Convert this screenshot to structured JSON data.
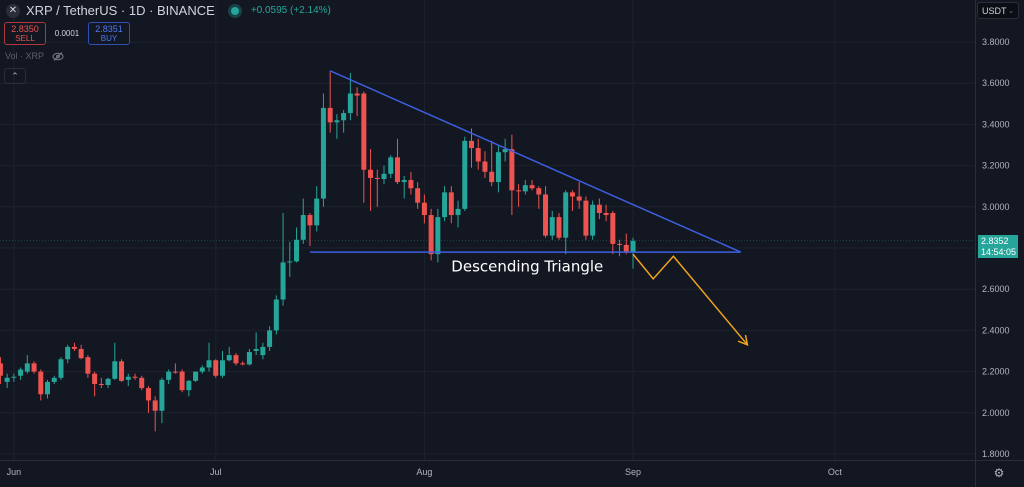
{
  "header": {
    "symbol_title": "XRP / TetherUS · 1D · BINANCE",
    "logo_icon": "xrp-logo-icon",
    "market_status": "open",
    "change": "+0.0595 (+2.14%)",
    "change_color": "#26a69a"
  },
  "trade": {
    "sell_price": "2.8350",
    "sell_label": "SELL",
    "spread": "0.0001",
    "buy_price": "2.8351",
    "buy_label": "BUY"
  },
  "indicator": {
    "label": "Vol · XRP",
    "visibility_icon": "eye-off-icon",
    "collapse_icon": "chevron-up-icon"
  },
  "currency_select": {
    "value": "USDT"
  },
  "last_price_tag": {
    "price": "2.8352",
    "countdown": "14:54:05",
    "color": "#26a69a"
  },
  "settings_icon": "gear-icon",
  "chart_data": {
    "type": "candlestick",
    "title": "",
    "interval": "1D",
    "colors": {
      "up": "#26a69a",
      "down": "#ef5350",
      "background": "#131722",
      "grid": "#1e222d",
      "trendline": "#3d5fe0",
      "projection": "#f0a31c"
    },
    "ylim": [
      1.75,
      3.92
    ],
    "y_ticks": [
      "3.8000",
      "3.6000",
      "3.4000",
      "3.2000",
      "3.0000",
      "2.8000",
      "2.6000",
      "2.4000",
      "2.2000",
      "2.0000",
      "1.8000"
    ],
    "y_ticks_hidden_by_tag": [
      "2.8000"
    ],
    "x_ticks": [
      {
        "label": "Jun",
        "date": "06-01"
      },
      {
        "label": "Jul",
        "date": "07-01"
      },
      {
        "label": "Aug",
        "date": "08-01"
      },
      {
        "label": "Sep",
        "date": "09-01"
      },
      {
        "label": "Oct",
        "date": "10-01"
      }
    ],
    "grid": true,
    "candles_columns": [
      "date",
      "open",
      "high",
      "low",
      "close"
    ],
    "candles": [
      [
        "05-30",
        2.24,
        2.27,
        2.14,
        2.18
      ],
      [
        "05-31",
        2.15,
        2.19,
        2.12,
        2.17
      ],
      [
        "06-01",
        2.17,
        2.19,
        2.15,
        2.175
      ],
      [
        "06-02",
        2.18,
        2.22,
        2.16,
        2.21
      ],
      [
        "06-03",
        2.2,
        2.28,
        2.19,
        2.24
      ],
      [
        "06-04",
        2.24,
        2.25,
        2.19,
        2.2
      ],
      [
        "06-05",
        2.2,
        2.21,
        2.06,
        2.09
      ],
      [
        "06-06",
        2.09,
        2.16,
        2.07,
        2.15
      ],
      [
        "06-07",
        2.15,
        2.18,
        2.14,
        2.17
      ],
      [
        "06-08",
        2.17,
        2.27,
        2.16,
        2.26
      ],
      [
        "06-09",
        2.26,
        2.33,
        2.24,
        2.32
      ],
      [
        "06-10",
        2.32,
        2.34,
        2.3,
        2.31
      ],
      [
        "06-11",
        2.31,
        2.33,
        2.26,
        2.265
      ],
      [
        "06-12",
        2.27,
        2.28,
        2.17,
        2.19
      ],
      [
        "06-13",
        2.19,
        2.2,
        2.08,
        2.14
      ],
      [
        "06-14",
        2.14,
        2.17,
        2.12,
        2.135
      ],
      [
        "06-15",
        2.135,
        2.17,
        2.12,
        2.165
      ],
      [
        "06-16",
        2.165,
        2.34,
        2.16,
        2.25
      ],
      [
        "06-17",
        2.25,
        2.26,
        2.15,
        2.155
      ],
      [
        "06-18",
        2.16,
        2.19,
        2.13,
        2.175
      ],
      [
        "06-19",
        2.175,
        2.19,
        2.16,
        2.17
      ],
      [
        "06-20",
        2.17,
        2.18,
        2.11,
        2.12
      ],
      [
        "06-21",
        2.12,
        2.13,
        2.0,
        2.06
      ],
      [
        "06-22",
        2.06,
        2.08,
        1.91,
        2.01
      ],
      [
        "06-23",
        2.01,
        2.17,
        1.95,
        2.16
      ],
      [
        "06-24",
        2.16,
        2.21,
        2.14,
        2.2
      ],
      [
        "06-25",
        2.2,
        2.24,
        2.19,
        2.195
      ],
      [
        "06-26",
        2.2,
        2.21,
        2.1,
        2.11
      ],
      [
        "06-27",
        2.11,
        2.16,
        2.08,
        2.155
      ],
      [
        "06-28",
        2.155,
        2.2,
        2.15,
        2.2
      ],
      [
        "06-29",
        2.2,
        2.23,
        2.19,
        2.22
      ],
      [
        "06-30",
        2.22,
        2.34,
        2.2,
        2.255
      ],
      [
        "07-01",
        2.255,
        2.26,
        2.17,
        2.18
      ],
      [
        "07-02",
        2.18,
        2.3,
        2.17,
        2.255
      ],
      [
        "07-03",
        2.255,
        2.32,
        2.25,
        2.28
      ],
      [
        "07-04",
        2.28,
        2.29,
        2.23,
        2.24
      ],
      [
        "07-05",
        2.24,
        2.25,
        2.23,
        2.235
      ],
      [
        "07-06",
        2.235,
        2.31,
        2.23,
        2.295
      ],
      [
        "07-07",
        2.3,
        2.39,
        2.28,
        2.31
      ],
      [
        "07-08",
        2.28,
        2.34,
        2.26,
        2.32
      ],
      [
        "07-09",
        2.32,
        2.42,
        2.3,
        2.4
      ],
      [
        "07-10",
        2.4,
        2.57,
        2.38,
        2.55
      ],
      [
        "07-11",
        2.55,
        2.97,
        2.52,
        2.73
      ],
      [
        "07-12",
        2.73,
        2.83,
        2.66,
        2.735
      ],
      [
        "07-13",
        2.735,
        2.9,
        2.73,
        2.84
      ],
      [
        "07-14",
        2.84,
        3.04,
        2.82,
        2.96
      ],
      [
        "07-15",
        2.96,
        2.97,
        2.81,
        2.91
      ],
      [
        "07-16",
        2.91,
        3.1,
        2.88,
        3.04
      ],
      [
        "07-17",
        3.04,
        3.55,
        3.0,
        3.48
      ],
      [
        "07-18",
        3.48,
        3.66,
        3.36,
        3.41
      ],
      [
        "07-19",
        3.41,
        3.45,
        3.33,
        3.42
      ],
      [
        "07-20",
        3.42,
        3.47,
        3.36,
        3.455
      ],
      [
        "07-21",
        3.455,
        3.65,
        3.42,
        3.55
      ],
      [
        "07-22",
        3.55,
        3.58,
        3.44,
        3.54
      ],
      [
        "07-23",
        3.55,
        3.56,
        3.02,
        3.18
      ],
      [
        "07-24",
        3.18,
        3.28,
        2.98,
        3.14
      ],
      [
        "07-25",
        3.14,
        3.18,
        3.0,
        3.135
      ],
      [
        "07-26",
        3.135,
        3.2,
        3.11,
        3.16
      ],
      [
        "07-27",
        3.16,
        3.25,
        3.14,
        3.24
      ],
      [
        "07-28",
        3.24,
        3.33,
        3.11,
        3.12
      ],
      [
        "07-29",
        3.12,
        3.15,
        3.04,
        3.13
      ],
      [
        "07-30",
        3.13,
        3.17,
        3.06,
        3.09
      ],
      [
        "07-31",
        3.09,
        3.12,
        2.99,
        3.02
      ],
      [
        "08-01",
        3.02,
        3.06,
        2.92,
        2.96
      ],
      [
        "08-02",
        2.96,
        2.99,
        2.74,
        2.77
      ],
      [
        "08-03",
        2.77,
        2.99,
        2.73,
        2.95
      ],
      [
        "08-04",
        2.95,
        3.1,
        2.93,
        3.07
      ],
      [
        "08-05",
        3.07,
        3.1,
        2.92,
        2.96
      ],
      [
        "08-06",
        2.96,
        3.03,
        2.9,
        2.99
      ],
      [
        "08-07",
        2.99,
        3.34,
        2.98,
        3.32
      ],
      [
        "08-08",
        3.32,
        3.38,
        3.19,
        3.285
      ],
      [
        "08-09",
        3.285,
        3.33,
        3.18,
        3.22
      ],
      [
        "08-10",
        3.22,
        3.27,
        3.14,
        3.17
      ],
      [
        "08-11",
        3.17,
        3.32,
        3.1,
        3.12
      ],
      [
        "08-12",
        3.12,
        3.3,
        3.07,
        3.265
      ],
      [
        "08-13",
        3.265,
        3.33,
        3.22,
        3.28
      ],
      [
        "08-14",
        3.28,
        3.35,
        2.96,
        3.08
      ],
      [
        "08-15",
        3.08,
        3.11,
        3.0,
        3.075
      ],
      [
        "08-16",
        3.075,
        3.13,
        3.06,
        3.105
      ],
      [
        "08-17",
        3.105,
        3.13,
        3.08,
        3.09
      ],
      [
        "08-18",
        3.09,
        3.1,
        2.99,
        3.06
      ],
      [
        "08-19",
        3.06,
        3.1,
        2.85,
        2.86
      ],
      [
        "08-20",
        2.86,
        2.98,
        2.84,
        2.95
      ],
      [
        "08-21",
        2.95,
        2.97,
        2.84,
        2.85
      ],
      [
        "08-22",
        2.85,
        3.08,
        2.77,
        3.07
      ],
      [
        "08-23",
        3.07,
        3.08,
        2.98,
        3.05
      ],
      [
        "08-24",
        3.05,
        3.12,
        2.99,
        3.03
      ],
      [
        "08-25",
        3.03,
        3.05,
        2.84,
        2.86
      ],
      [
        "08-26",
        2.86,
        3.03,
        2.84,
        3.01
      ],
      [
        "08-27",
        3.01,
        3.04,
        2.94,
        2.97
      ],
      [
        "08-28",
        2.97,
        3.01,
        2.93,
        2.96
      ],
      [
        "08-29",
        2.97,
        2.98,
        2.77,
        2.82
      ],
      [
        "08-30",
        2.82,
        2.84,
        2.76,
        2.815
      ],
      [
        "08-31",
        2.815,
        2.87,
        2.77,
        2.78
      ],
      [
        "09-01",
        2.78,
        2.85,
        2.7,
        2.835
      ]
    ],
    "drawings": {
      "upper_trendline": [
        [
          "07-18",
          3.66
        ],
        [
          "09-17",
          2.78
        ]
      ],
      "lower_trendline": [
        [
          "07-15",
          2.78
        ],
        [
          "09-17",
          2.78
        ]
      ],
      "projection_arrow": [
        [
          "09-01",
          2.77
        ],
        [
          "09-04",
          2.65
        ],
        [
          "09-07",
          2.76
        ],
        [
          "09-18",
          2.33
        ]
      ],
      "annotation": {
        "text": "Descending Triangle",
        "at": [
          "08-05",
          2.71
        ]
      }
    }
  }
}
